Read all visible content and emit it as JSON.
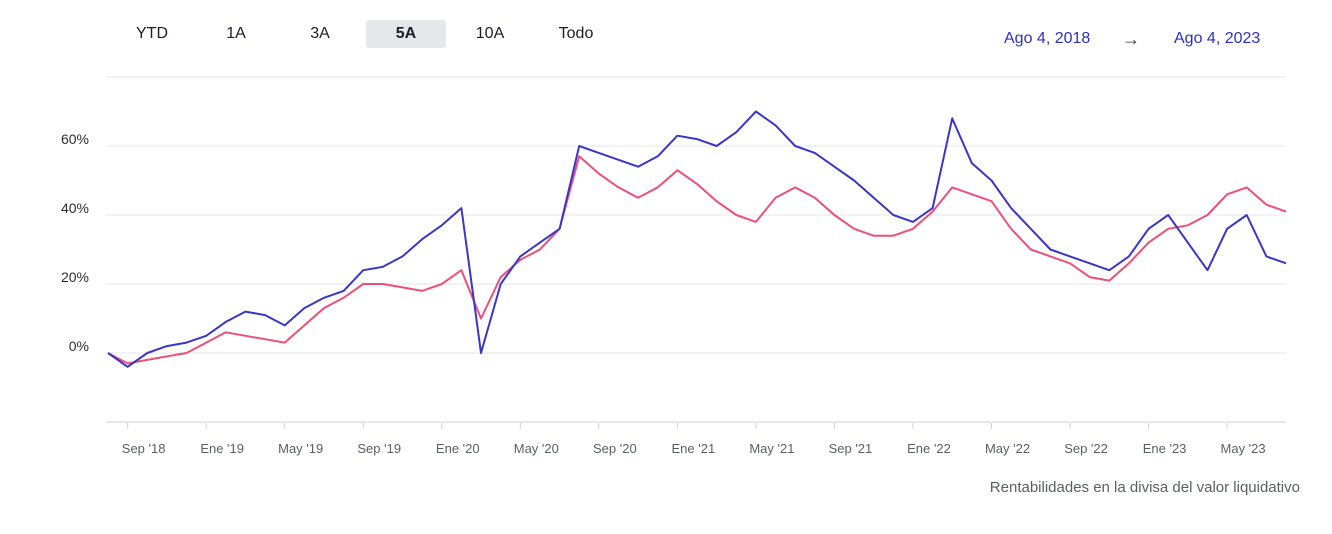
{
  "range_tabs": [
    {
      "label": "YTD",
      "active": false
    },
    {
      "label": "1A",
      "active": false
    },
    {
      "label": "3A",
      "active": false
    },
    {
      "label": "5A",
      "active": true
    },
    {
      "label": "10A",
      "active": false
    },
    {
      "label": "Todo",
      "active": false
    }
  ],
  "date_range": {
    "start": "Ago 4, 2018",
    "arrow": "→",
    "end": "Ago 4, 2023"
  },
  "footnote": "Rentabilidades en la divisa del valor liquidativo",
  "colors": {
    "series_blue": "#3a36c6",
    "series_pink": "#ee4f78",
    "grid": "#e3e5e8",
    "tick": "#5a5f66",
    "date_link": "#2d2fbf"
  },
  "chart_data": {
    "type": "line",
    "x_ticks": [
      "Sep '18",
      "Ene '19",
      "May '19",
      "Sep '19",
      "Ene '20",
      "May '20",
      "Sep '20",
      "Ene '21",
      "May '21",
      "Sep '21",
      "Ene '22",
      "May '22",
      "Sep '22",
      "Ene '23",
      "May '23"
    ],
    "y_ticks": [
      "0%",
      "20%",
      "40%",
      "60%"
    ],
    "ylim": [
      -20,
      80
    ],
    "x": [
      "2018-08",
      "2018-09",
      "2018-10",
      "2018-11",
      "2018-12",
      "2019-01",
      "2019-02",
      "2019-03",
      "2019-04",
      "2019-05",
      "2019-06",
      "2019-07",
      "2019-08",
      "2019-09",
      "2019-10",
      "2019-11",
      "2019-12",
      "2020-01",
      "2020-02",
      "2020-03",
      "2020-04",
      "2020-05",
      "2020-06",
      "2020-07",
      "2020-08",
      "2020-09",
      "2020-10",
      "2020-11",
      "2020-12",
      "2021-01",
      "2021-02",
      "2021-03",
      "2021-04",
      "2021-05",
      "2021-06",
      "2021-07",
      "2021-08",
      "2021-09",
      "2021-10",
      "2021-11",
      "2021-12",
      "2022-01",
      "2022-02",
      "2022-03",
      "2022-04",
      "2022-05",
      "2022-06",
      "2022-07",
      "2022-08",
      "2022-09",
      "2022-10",
      "2022-11",
      "2022-12",
      "2023-01",
      "2023-02",
      "2023-03",
      "2023-04",
      "2023-05",
      "2023-06",
      "2023-07",
      "2023-08"
    ],
    "series": [
      {
        "color": "#3a36c6",
        "values": [
          0,
          -4,
          0,
          2,
          3,
          5,
          9,
          12,
          11,
          8,
          13,
          16,
          18,
          24,
          25,
          28,
          33,
          37,
          42,
          0,
          20,
          28,
          32,
          36,
          60,
          58,
          56,
          54,
          57,
          63,
          62,
          60,
          64,
          70,
          66,
          60,
          58,
          54,
          50,
          45,
          40,
          38,
          42,
          68,
          55,
          50,
          42,
          36,
          30,
          28,
          26,
          24,
          28,
          36,
          40,
          32,
          24,
          36,
          40,
          28,
          26
        ]
      },
      {
        "color": "#ee4f78",
        "values": [
          0,
          -3,
          -2,
          -1,
          0,
          3,
          6,
          5,
          4,
          3,
          8,
          13,
          16,
          20,
          20,
          19,
          18,
          20,
          24,
          10,
          22,
          27,
          30,
          36,
          57,
          52,
          48,
          45,
          48,
          53,
          49,
          44,
          40,
          38,
          45,
          48,
          45,
          40,
          36,
          34,
          34,
          36,
          41,
          48,
          46,
          44,
          36,
          30,
          28,
          26,
          22,
          21,
          26,
          32,
          36,
          37,
          40,
          46,
          48,
          43,
          41
        ]
      }
    ]
  }
}
